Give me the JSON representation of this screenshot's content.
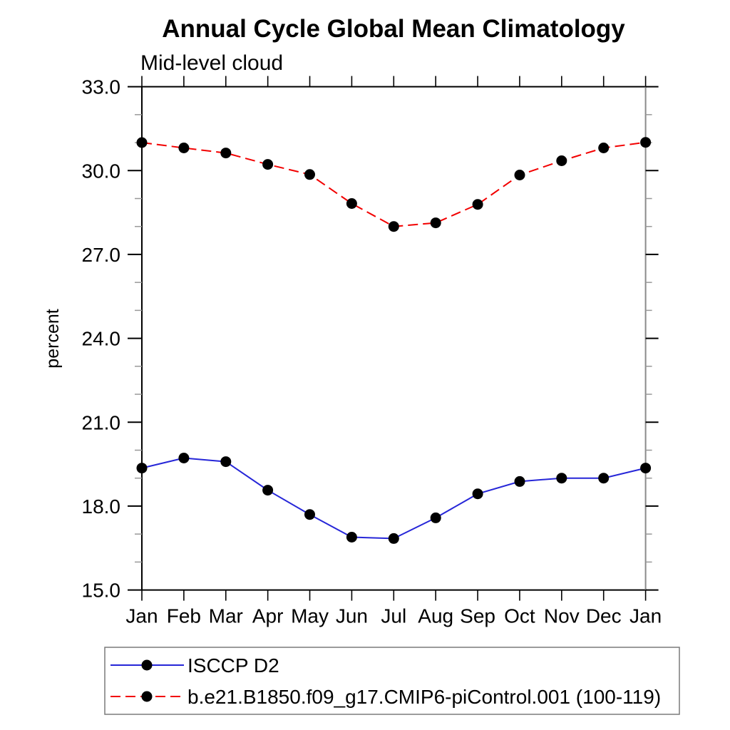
{
  "chart_data": {
    "type": "line",
    "title": "Annual Cycle Global Mean Climatology",
    "subtitle": "Mid-level cloud",
    "ylabel": "percent",
    "xlabel": "",
    "x_categories": [
      "Jan",
      "Feb",
      "Mar",
      "Apr",
      "May",
      "Jun",
      "Jul",
      "Aug",
      "Sep",
      "Oct",
      "Nov",
      "Dec",
      "Jan"
    ],
    "ylim": [
      15.0,
      33.0
    ],
    "ytick_major_values": [
      15,
      18,
      21,
      24,
      27,
      30,
      33
    ],
    "ytick_major_labels": [
      "15.0",
      "18.0",
      "21.0",
      "24.0",
      "27.0",
      "30.0",
      "33.0"
    ],
    "ytick_minor_step": 1.0,
    "grid": false,
    "legend_position": "bottom-left-box",
    "series": [
      {
        "name": "ISCCP D2",
        "color": "#2626d8",
        "line_style": "solid",
        "marker": "filled-circle",
        "marker_color": "#000000",
        "values": [
          19.36,
          19.72,
          19.59,
          18.57,
          17.7,
          16.89,
          16.84,
          17.58,
          18.44,
          18.88,
          19.0,
          19.0,
          19.36
        ]
      },
      {
        "name": "b.e21.B1850.f09_g17.CMIP6-piControl.001 (100-119)",
        "color": "#f20000",
        "line_style": "dashed",
        "marker": "filled-circle",
        "marker_color": "#000000",
        "values": [
          31.0,
          30.81,
          30.63,
          30.22,
          29.86,
          28.82,
          28.0,
          28.13,
          28.79,
          29.84,
          30.35,
          30.81,
          31.01
        ]
      }
    ],
    "colors": {
      "axis": "#000000",
      "right_axis": "#8a8a8a",
      "minor_tick": "#999999",
      "legend_border": "#7a7a7a",
      "background": "#ffffff"
    }
  }
}
